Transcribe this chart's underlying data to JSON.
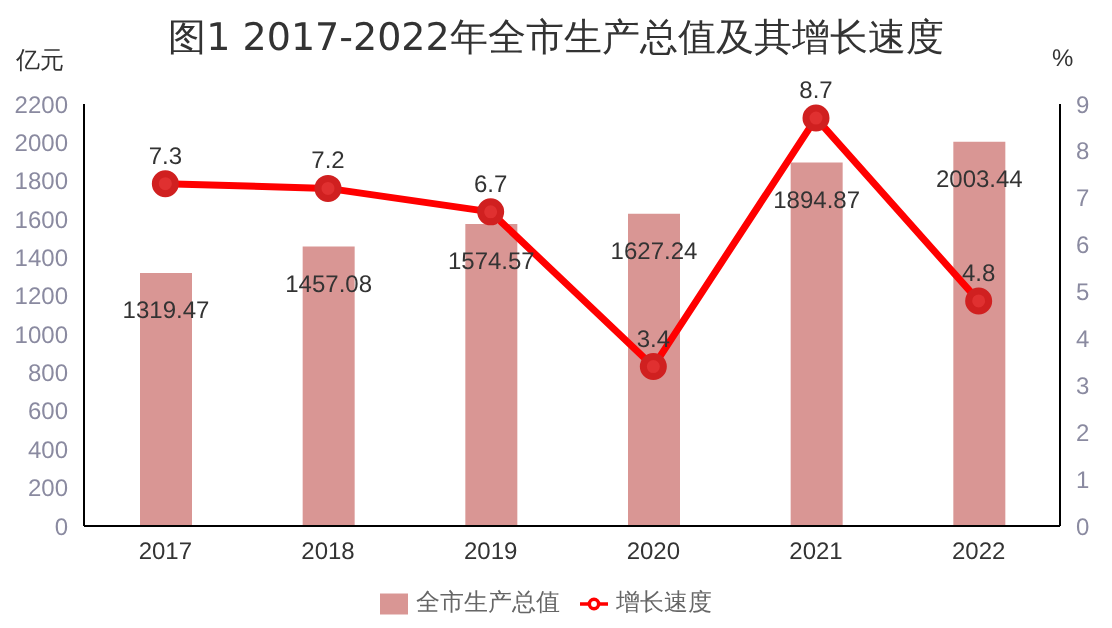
{
  "chart_data": {
    "type": "bar",
    "title": "图1 2017-2022年全市生产总值及其增长速度",
    "ylabel": "亿元",
    "y2label": "%",
    "categories": [
      "2017",
      "2018",
      "2019",
      "2020",
      "2021",
      "2022"
    ],
    "series": [
      {
        "name": "全市生产总值",
        "color": "#d99694",
        "values": [
          1319.47,
          1457.08,
          1574.57,
          1627.24,
          1894.87,
          2003.44
        ]
      },
      {
        "name": "增长速度",
        "type": "line",
        "axis": "y2",
        "color": "#ff0000",
        "values": [
          7.3,
          7.2,
          6.7,
          3.4,
          8.7,
          4.8
        ]
      }
    ],
    "ylim": [
      0,
      2200
    ],
    "yticks": [
      0,
      200,
      400,
      600,
      800,
      1000,
      1200,
      1400,
      1600,
      1800,
      2000,
      2200
    ],
    "y2lim": [
      0,
      9
    ],
    "y2ticks": [
      0,
      1,
      2,
      3,
      4,
      5,
      6,
      7,
      8,
      9
    ],
    "data_labels": true,
    "grid": false,
    "legend": "bottom",
    "marker": "circle",
    "line_style": "solid"
  }
}
